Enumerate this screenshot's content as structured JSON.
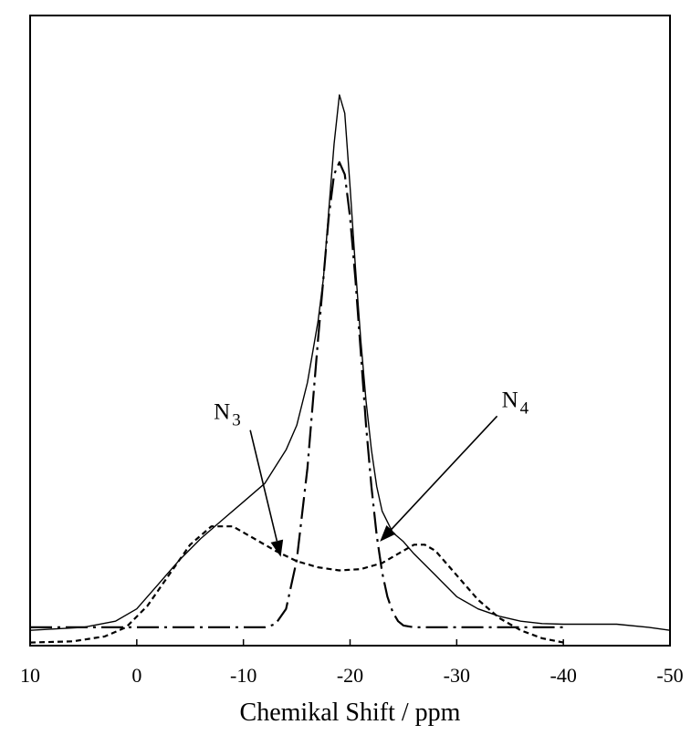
{
  "chart_data": {
    "type": "line",
    "title": "",
    "xlabel": "Chemikal Shift / ppm",
    "ylabel": "",
    "xlim": [
      10,
      -50
    ],
    "ylim": [
      0,
      100
    ],
    "x_reversed": true,
    "grid": false,
    "legend": "none",
    "x_ticks": [
      10,
      0,
      -10,
      -20,
      -30,
      -40,
      -50
    ],
    "x_tick_labels": [
      "10",
      "0",
      "-10",
      "-20",
      "-30",
      "-40",
      "-50"
    ],
    "series": [
      {
        "style": "solid",
        "x": [
          10,
          5,
          2,
          0,
          -2,
          -4,
          -6,
          -8,
          -10,
          -12,
          -14,
          -15,
          -16,
          -17,
          -17.5,
          -18,
          -18.5,
          -19,
          -19.5,
          -20,
          -20.5,
          -21,
          -21.5,
          -22,
          -22.5,
          -23,
          -24,
          -25,
          -26,
          -28,
          -30,
          -32,
          -34,
          -36,
          -38,
          -40,
          -45,
          -48,
          -50
        ],
        "y": [
          2.5,
          3.0,
          4.0,
          6.0,
          10.0,
          14.0,
          17.5,
          20.5,
          23.5,
          26.5,
          32.0,
          36.0,
          43.0,
          53.0,
          60.0,
          71.0,
          82.0,
          90.0,
          87.0,
          75.0,
          62.0,
          50.0,
          40.0,
          32.0,
          26.0,
          22.0,
          18.5,
          17.0,
          15.0,
          11.5,
          8.0,
          6.0,
          4.8,
          4.0,
          3.6,
          3.5,
          3.5,
          3.0,
          2.5
        ]
      },
      {
        "style": "dashed",
        "x": [
          10,
          6,
          3,
          1,
          -1,
          -3,
          -5,
          -7,
          -9,
          -11,
          -13,
          -15,
          -17,
          -19,
          -21,
          -23,
          -25,
          -26,
          -27,
          -28,
          -30,
          -32,
          -34,
          -36,
          -38,
          -40
        ],
        "y": [
          0.5,
          0.7,
          1.5,
          3.0,
          6.5,
          11.5,
          16.5,
          19.5,
          19.5,
          17.5,
          15.5,
          13.8,
          12.8,
          12.3,
          12.5,
          13.5,
          15.5,
          16.5,
          16.5,
          15.5,
          11.5,
          7.5,
          4.5,
          2.5,
          1.2,
          0.5
        ]
      },
      {
        "style": "dash-dot",
        "x": [
          10,
          0,
          -10,
          -12,
          -13,
          -14,
          -15,
          -16,
          -17,
          -17.5,
          -18,
          -18.5,
          -19,
          -19.5,
          -20,
          -20.5,
          -21,
          -21.5,
          -22,
          -22.5,
          -23,
          -23.5,
          -24,
          -24.5,
          -25,
          -26,
          -30,
          -35,
          -40
        ],
        "y": [
          3.0,
          3.0,
          3.0,
          3.0,
          3.5,
          6.0,
          14.0,
          29.0,
          50.0,
          60.0,
          70.0,
          77.0,
          79.0,
          77.0,
          70.0,
          60.0,
          48.0,
          36.0,
          26.0,
          18.0,
          12.0,
          8.0,
          5.5,
          4.0,
          3.3,
          3.0,
          3.0,
          3.0,
          3.0
        ]
      }
    ],
    "annotations": [
      {
        "main": "N",
        "sub": "3",
        "x": -8.5,
        "y": 37.0,
        "arrow_to_x": -13.5,
        "arrow_to_y": 14.5
      },
      {
        "main": "N",
        "sub": "4",
        "x": -35.5,
        "y": 39.0,
        "arrow_to_x": -22.8,
        "arrow_to_y": 17.0
      }
    ]
  }
}
